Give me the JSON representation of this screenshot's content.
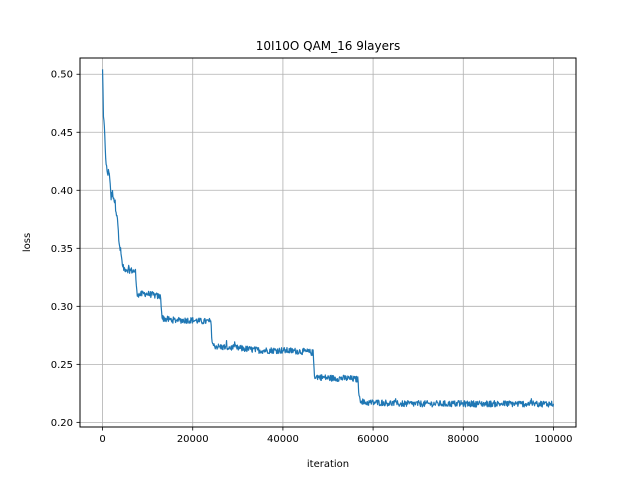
{
  "chart_data": {
    "type": "line",
    "title": "10I10O QAM_16 9layers",
    "xlabel": "iteration",
    "ylabel": "loss",
    "xlim": [
      -5000,
      105000
    ],
    "ylim": [
      0.196,
      0.514
    ],
    "xticks": [
      0,
      20000,
      40000,
      60000,
      80000,
      100000
    ],
    "xtick_labels": [
      "0",
      "20000",
      "40000",
      "60000",
      "80000",
      "100000"
    ],
    "yticks": [
      0.2,
      0.25,
      0.3,
      0.35,
      0.4,
      0.45,
      0.5
    ],
    "ytick_labels": [
      "0.20",
      "0.25",
      "0.30",
      "0.35",
      "0.40",
      "0.45",
      "0.50"
    ],
    "grid": true,
    "series": [
      {
        "color": "#1f77b4",
        "x": [
          0,
          200,
          500,
          800,
          1200,
          1500,
          1900,
          2300,
          2800,
          3300,
          3600,
          4000,
          4500,
          5200,
          6200,
          7300,
          7600,
          8000,
          9500,
          11000,
          12900,
          13200,
          14000,
          16000,
          18000,
          20000,
          22000,
          24000,
          24300,
          24600,
          26000,
          30000,
          35000,
          40000,
          45000,
          46700,
          47000,
          48000,
          51000,
          54000,
          56600,
          57000,
          58000,
          62000,
          66000,
          70000,
          75000,
          80000,
          85000,
          90000,
          95000,
          100000
        ],
        "y": [
          0.503,
          0.462,
          0.448,
          0.42,
          0.414,
          0.417,
          0.394,
          0.398,
          0.388,
          0.378,
          0.355,
          0.348,
          0.333,
          0.332,
          0.331,
          0.33,
          0.312,
          0.31,
          0.311,
          0.31,
          0.308,
          0.29,
          0.289,
          0.288,
          0.288,
          0.288,
          0.287,
          0.287,
          0.27,
          0.266,
          0.265,
          0.264,
          0.262,
          0.262,
          0.261,
          0.26,
          0.24,
          0.239,
          0.238,
          0.238,
          0.237,
          0.22,
          0.217,
          0.217,
          0.216,
          0.216,
          0.216,
          0.216,
          0.216,
          0.216,
          0.216,
          0.216
        ]
      }
    ]
  }
}
